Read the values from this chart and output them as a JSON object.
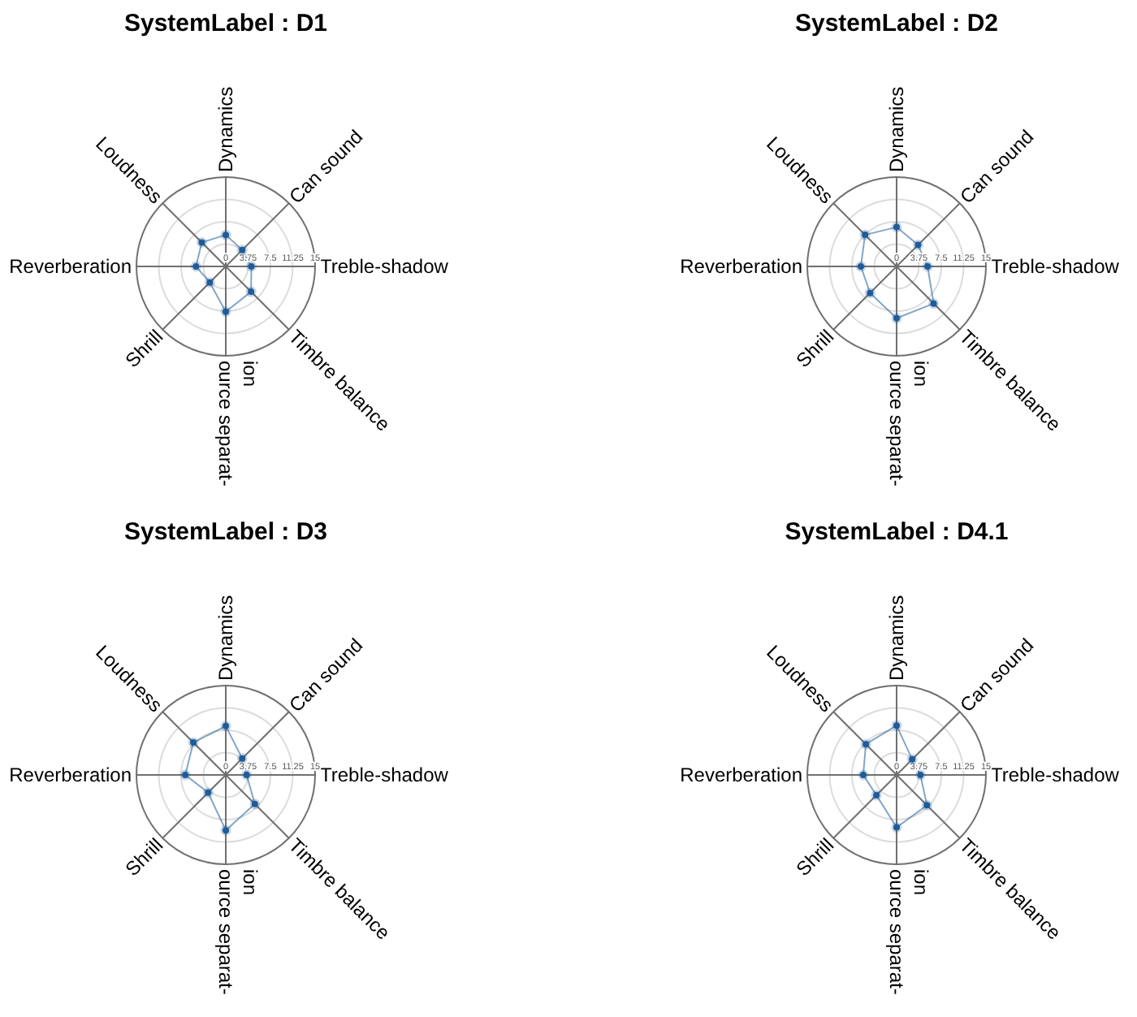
{
  "chart_data": [
    {
      "type": "radar",
      "title": "SystemLabel : D1",
      "categories": [
        "Dynamics",
        "Can sound",
        "Treble-shadow",
        "Timbre balance",
        "ource separat-\nion",
        "Shrill",
        "Reverberation",
        "Loudness"
      ],
      "series": [
        {
          "color": "#1f5c99",
          "values": [
            5.3,
            3.9,
            4.3,
            6.0,
            7.6,
            3.8,
            5.0,
            5.7
          ]
        }
      ],
      "ylim": [
        0,
        15
      ],
      "yticks": [
        0,
        3.75,
        7.5,
        11.25,
        15
      ],
      "grid": true,
      "marker": "circle",
      "line_style": "solid"
    },
    {
      "type": "radar",
      "title": "SystemLabel : D2",
      "categories": [
        "Dynamics",
        "Can sound",
        "Treble-shadow",
        "Timbre balance",
        "ource separat-\nion",
        "Shrill",
        "Reverberation",
        "Loudness"
      ],
      "series": [
        {
          "color": "#1f5c99",
          "values": [
            6.6,
            5.1,
            5.2,
            8.8,
            8.7,
            6.3,
            6.0,
            7.5
          ]
        }
      ],
      "ylim": [
        0,
        15
      ],
      "yticks": [
        0,
        3.75,
        7.5,
        11.25,
        15
      ],
      "grid": true,
      "marker": "circle",
      "line_style": "solid"
    },
    {
      "type": "radar",
      "title": "SystemLabel : D3",
      "categories": [
        "Dynamics",
        "Can sound",
        "Treble-shadow",
        "Timbre balance",
        "ource separat-\nion",
        "Shrill",
        "Reverberation",
        "Loudness"
      ],
      "series": [
        {
          "color": "#1f5c99",
          "values": [
            8.2,
            3.9,
            3.5,
            6.9,
            9.3,
            4.2,
            6.8,
            7.7
          ]
        }
      ],
      "ylim": [
        0,
        15
      ],
      "yticks": [
        0,
        3.75,
        7.5,
        11.25,
        15
      ],
      "grid": true,
      "marker": "circle",
      "line_style": "solid"
    },
    {
      "type": "radar",
      "title": "SystemLabel : D4.1",
      "categories": [
        "Dynamics",
        "Can sound",
        "Treble-shadow",
        "Timbre balance",
        "ource separat-\nion",
        "Shrill",
        "Reverberation",
        "Loudness"
      ],
      "series": [
        {
          "color": "#1f5c99",
          "values": [
            8.3,
            3.7,
            4.0,
            7.2,
            8.8,
            4.8,
            5.6,
            7.3
          ]
        }
      ],
      "ylim": [
        0,
        15
      ],
      "yticks": [
        0,
        3.75,
        7.5,
        11.25,
        15
      ],
      "grid": true,
      "marker": "circle",
      "line_style": "solid"
    }
  ]
}
